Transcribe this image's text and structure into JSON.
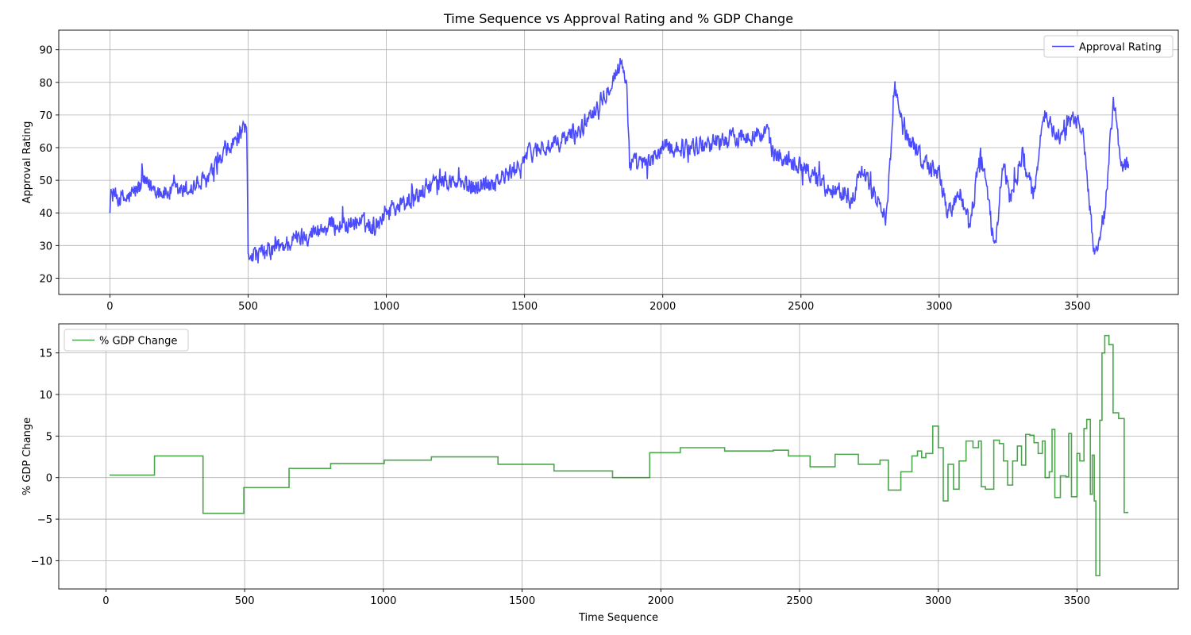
{
  "figure": {
    "title": "Time Sequence vs Approval Rating and % GDP Change"
  },
  "chart_data": [
    {
      "type": "line",
      "title": "Time Sequence vs Approval Rating and % GDP Change",
      "xlabel": "",
      "ylabel": "Approval Rating",
      "xlim": [
        -185,
        3865
      ],
      "ylim": [
        15,
        96
      ],
      "xticks": [
        0,
        500,
        1000,
        1500,
        2000,
        2500,
        3000,
        3500
      ],
      "yticks": [
        20,
        30,
        40,
        50,
        60,
        70,
        80,
        90
      ],
      "grid": true,
      "legend_position": "upper right",
      "series": [
        {
          "name": "Approval Rating",
          "color": "#0000ff",
          "noise": 3.5,
          "anchors": [
            [
              0,
              46
            ],
            [
              60,
              44
            ],
            [
              120,
              49
            ],
            [
              200,
              46
            ],
            [
              280,
              47
            ],
            [
              350,
              50
            ],
            [
              420,
              58
            ],
            [
              470,
              64
            ],
            [
              495,
              65
            ],
            [
              500,
              28
            ],
            [
              540,
              27
            ],
            [
              600,
              29
            ],
            [
              700,
              33
            ],
            [
              800,
              36
            ],
            [
              900,
              37
            ],
            [
              960,
              36
            ],
            [
              1000,
              41
            ],
            [
              1100,
              44
            ],
            [
              1150,
              48
            ],
            [
              1200,
              50
            ],
            [
              1300,
              48
            ],
            [
              1400,
              50
            ],
            [
              1450,
              52
            ],
            [
              1500,
              57
            ],
            [
              1550,
              60
            ],
            [
              1600,
              60
            ],
            [
              1650,
              63
            ],
            [
              1700,
              65
            ],
            [
              1750,
              72
            ],
            [
              1800,
              78
            ],
            [
              1850,
              86
            ],
            [
              1870,
              80
            ],
            [
              1880,
              55
            ],
            [
              1950,
              55
            ],
            [
              2000,
              60
            ],
            [
              2100,
              60
            ],
            [
              2200,
              62
            ],
            [
              2300,
              64
            ],
            [
              2380,
              64
            ],
            [
              2400,
              58
            ],
            [
              2500,
              55
            ],
            [
              2600,
              48
            ],
            [
              2680,
              45
            ],
            [
              2720,
              52
            ],
            [
              2780,
              44
            ],
            [
              2810,
              38
            ],
            [
              2840,
              78
            ],
            [
              2870,
              65
            ],
            [
              2900,
              62
            ],
            [
              2950,
              55
            ],
            [
              3000,
              52
            ],
            [
              3030,
              40
            ],
            [
              3080,
              46
            ],
            [
              3110,
              35
            ],
            [
              3150,
              60
            ],
            [
              3180,
              42
            ],
            [
              3200,
              28
            ],
            [
              3230,
              55
            ],
            [
              3260,
              45
            ],
            [
              3300,
              58
            ],
            [
              3340,
              45
            ],
            [
              3380,
              70
            ],
            [
              3420,
              65
            ],
            [
              3450,
              62
            ],
            [
              3480,
              70
            ],
            [
              3520,
              65
            ],
            [
              3560,
              28
            ],
            [
              3600,
              40
            ],
            [
              3630,
              75
            ],
            [
              3660,
              55
            ],
            [
              3685,
              55
            ]
          ]
        }
      ]
    },
    {
      "type": "line",
      "title": "",
      "xlabel": "Time Sequence",
      "ylabel": "% GDP Change",
      "xlim": [
        -170,
        3865
      ],
      "ylim": [
        -13.4,
        18.5
      ],
      "xticks": [
        0,
        500,
        1000,
        1500,
        2000,
        2500,
        3000,
        3500
      ],
      "yticks": [
        -10,
        -5,
        0,
        5,
        10,
        15
      ],
      "grid": true,
      "legend_position": "upper left",
      "series": [
        {
          "name": "% GDP Change",
          "color": "#008000",
          "step": true,
          "points": [
            [
              13,
              0.3
            ],
            [
              175,
              2.6
            ],
            [
              350,
              -4.3
            ],
            [
              497,
              -1.2
            ],
            [
              660,
              1.1
            ],
            [
              810,
              1.7
            ],
            [
              1003,
              2.1
            ],
            [
              1173,
              2.5
            ],
            [
              1413,
              1.6
            ],
            [
              1615,
              0.8
            ],
            [
              1826,
              0.0
            ],
            [
              1960,
              3.0
            ],
            [
              2070,
              3.6
            ],
            [
              2230,
              3.2
            ],
            [
              2405,
              3.3
            ],
            [
              2460,
              2.6
            ],
            [
              2538,
              1.3
            ],
            [
              2628,
              2.8
            ],
            [
              2712,
              1.6
            ],
            [
              2790,
              2.1
            ],
            [
              2820,
              -1.5
            ],
            [
              2865,
              0.7
            ],
            [
              2905,
              2.6
            ],
            [
              2925,
              3.2
            ],
            [
              2940,
              2.4
            ],
            [
              2955,
              2.9
            ],
            [
              2980,
              6.2
            ],
            [
              3000,
              3.6
            ],
            [
              3018,
              -2.8
            ],
            [
              3035,
              1.6
            ],
            [
              3055,
              -1.4
            ],
            [
              3075,
              2.0
            ],
            [
              3100,
              4.4
            ],
            [
              3125,
              3.6
            ],
            [
              3145,
              4.4
            ],
            [
              3155,
              -1.1
            ],
            [
              3170,
              -1.4
            ],
            [
              3200,
              4.5
            ],
            [
              3220,
              4.1
            ],
            [
              3235,
              2.0
            ],
            [
              3250,
              -0.9
            ],
            [
              3268,
              2.0
            ],
            [
              3285,
              3.8
            ],
            [
              3300,
              1.5
            ],
            [
              3315,
              5.2
            ],
            [
              3330,
              5.1
            ],
            [
              3345,
              4.2
            ],
            [
              3360,
              2.9
            ],
            [
              3375,
              4.4
            ],
            [
              3385,
              0.0
            ],
            [
              3400,
              0.7
            ],
            [
              3410,
              5.8
            ],
            [
              3420,
              -2.4
            ],
            [
              3440,
              0.2
            ],
            [
              3460,
              0.1
            ],
            [
              3470,
              5.3
            ],
            [
              3480,
              -2.3
            ],
            [
              3500,
              2.9
            ],
            [
              3510,
              2.0
            ],
            [
              3525,
              5.9
            ],
            [
              3535,
              7.0
            ],
            [
              3548,
              -2.0
            ],
            [
              3555,
              2.7
            ],
            [
              3562,
              -2.8
            ],
            [
              3568,
              -11.8
            ],
            [
              3582,
              6.9
            ],
            [
              3590,
              15.0
            ],
            [
              3600,
              17.1
            ],
            [
              3615,
              16.0
            ],
            [
              3630,
              7.8
            ],
            [
              3650,
              7.1
            ],
            [
              3670,
              -4.2
            ],
            [
              3685,
              -4.2
            ]
          ]
        }
      ]
    }
  ]
}
